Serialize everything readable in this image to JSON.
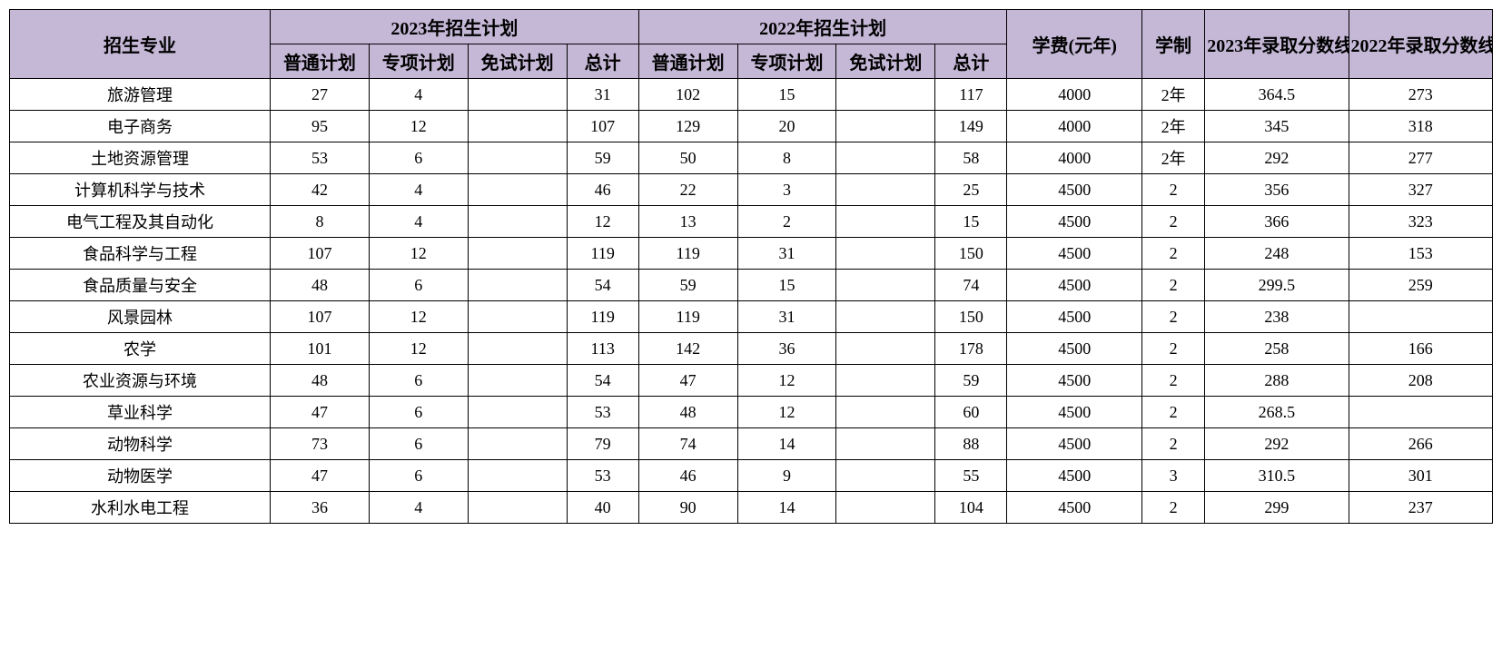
{
  "table": {
    "header_bg": "#c5b8d7",
    "border_color": "#000000",
    "columns": {
      "major": "招生专业",
      "plan2023": "2023年招生计划",
      "plan2022": "2022年招生计划",
      "fee": "学费(元年)",
      "duration": "学制",
      "score2023": "2023年录取分数线",
      "score2022": "2022年录取分数线",
      "sub_normal": "普通计划",
      "sub_special": "专项计划",
      "sub_exempt": "免试计划",
      "sub_total": "总计"
    },
    "rows": [
      {
        "major": "旅游管理",
        "n23": "27",
        "s23": "4",
        "e23": "",
        "t23": "31",
        "n22": "102",
        "s22": "15",
        "e22": "",
        "t22": "117",
        "fee": "4000",
        "dur": "2年",
        "sc23": "364.5",
        "sc22": "273"
      },
      {
        "major": "电子商务",
        "n23": "95",
        "s23": "12",
        "e23": "",
        "t23": "107",
        "n22": "129",
        "s22": "20",
        "e22": "",
        "t22": "149",
        "fee": "4000",
        "dur": "2年",
        "sc23": "345",
        "sc22": "318"
      },
      {
        "major": "土地资源管理",
        "n23": "53",
        "s23": "6",
        "e23": "",
        "t23": "59",
        "n22": "50",
        "s22": "8",
        "e22": "",
        "t22": "58",
        "fee": "4000",
        "dur": "2年",
        "sc23": "292",
        "sc22": "277"
      },
      {
        "major": "计算机科学与技术",
        "n23": "42",
        "s23": "4",
        "e23": "",
        "t23": "46",
        "n22": "22",
        "s22": "3",
        "e22": "",
        "t22": "25",
        "fee": "4500",
        "dur": "2",
        "sc23": "356",
        "sc22": "327"
      },
      {
        "major": "电气工程及其自动化",
        "n23": "8",
        "s23": "4",
        "e23": "",
        "t23": "12",
        "n22": "13",
        "s22": "2",
        "e22": "",
        "t22": "15",
        "fee": "4500",
        "dur": "2",
        "sc23": "366",
        "sc22": "323"
      },
      {
        "major": "食品科学与工程",
        "n23": "107",
        "s23": "12",
        "e23": "",
        "t23": "119",
        "n22": "119",
        "s22": "31",
        "e22": "",
        "t22": "150",
        "fee": "4500",
        "dur": "2",
        "sc23": "248",
        "sc22": "153"
      },
      {
        "major": "食品质量与安全",
        "n23": "48",
        "s23": "6",
        "e23": "",
        "t23": "54",
        "n22": "59",
        "s22": "15",
        "e22": "",
        "t22": "74",
        "fee": "4500",
        "dur": "2",
        "sc23": "299.5",
        "sc22": "259"
      },
      {
        "major": "风景园林",
        "n23": "107",
        "s23": "12",
        "e23": "",
        "t23": "119",
        "n22": "119",
        "s22": "31",
        "e22": "",
        "t22": "150",
        "fee": "4500",
        "dur": "2",
        "sc23": "238",
        "sc22": ""
      },
      {
        "major": "农学",
        "n23": "101",
        "s23": "12",
        "e23": "",
        "t23": "113",
        "n22": "142",
        "s22": "36",
        "e22": "",
        "t22": "178",
        "fee": "4500",
        "dur": "2",
        "sc23": "258",
        "sc22": "166"
      },
      {
        "major": "农业资源与环境",
        "n23": "48",
        "s23": "6",
        "e23": "",
        "t23": "54",
        "n22": "47",
        "s22": "12",
        "e22": "",
        "t22": "59",
        "fee": "4500",
        "dur": "2",
        "sc23": "288",
        "sc22": "208"
      },
      {
        "major": "草业科学",
        "n23": "47",
        "s23": "6",
        "e23": "",
        "t23": "53",
        "n22": "48",
        "s22": "12",
        "e22": "",
        "t22": "60",
        "fee": "4500",
        "dur": "2",
        "sc23": "268.5",
        "sc22": ""
      },
      {
        "major": "动物科学",
        "n23": "73",
        "s23": "6",
        "e23": "",
        "t23": "79",
        "n22": "74",
        "s22": "14",
        "e22": "",
        "t22": "88",
        "fee": "4500",
        "dur": "2",
        "sc23": "292",
        "sc22": "266"
      },
      {
        "major": "动物医学",
        "n23": "47",
        "s23": "6",
        "e23": "",
        "t23": "53",
        "n22": "46",
        "s22": "9",
        "e22": "",
        "t22": "55",
        "fee": "4500",
        "dur": "3",
        "sc23": "310.5",
        "sc22": "301"
      },
      {
        "major": "水利水电工程",
        "n23": "36",
        "s23": "4",
        "e23": "",
        "t23": "40",
        "n22": "90",
        "s22": "14",
        "e22": "",
        "t22": "104",
        "fee": "4500",
        "dur": "2",
        "sc23": "299",
        "sc22": "237"
      }
    ]
  }
}
